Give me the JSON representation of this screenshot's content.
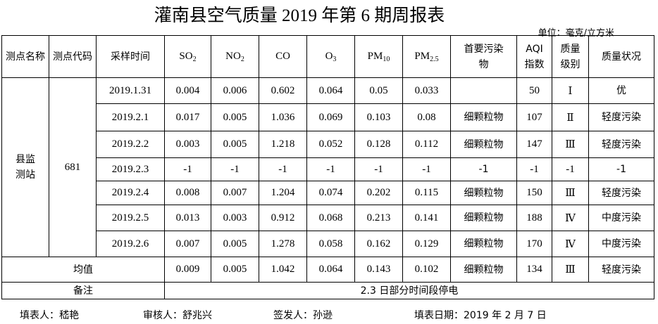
{
  "title": "灌南县空气质量 2019 年第 6 期周报表",
  "unit": "单位：毫克/立方米",
  "headers": {
    "station_name": "测点名称",
    "station_code": "测点代码",
    "time": "采样时间",
    "so2": "SO",
    "so2_sub": "2",
    "no2": "NO",
    "no2_sub": "2",
    "co": "CO",
    "o3": "O",
    "o3_sub": "3",
    "pm10": "PM",
    "pm10_sub": "10",
    "pm25": "PM",
    "pm25_sub": "2.5",
    "primary": "首要污染物",
    "aqi": "AQI指数",
    "level": "质量级别",
    "status": "质量状况"
  },
  "station": {
    "name": "县监测站",
    "code": "681"
  },
  "rows": [
    {
      "time": "2019.1.31",
      "so2": "0.004",
      "no2": "0.006",
      "co": "0.602",
      "o3": "0.064",
      "pm10": "0.05",
      "pm25": "0.033",
      "primary": "",
      "aqi": "50",
      "level": "Ⅰ",
      "status": "优"
    },
    {
      "time": "2019.2.1",
      "so2": "0.017",
      "no2": "0.005",
      "co": "1.036",
      "o3": "0.069",
      "pm10": "0.103",
      "pm25": "0.08",
      "primary": "细颗粒物",
      "aqi": "107",
      "level": "Ⅱ",
      "status": "轻度污染"
    },
    {
      "time": "2019.2.2",
      "so2": "0.003",
      "no2": "0.005",
      "co": "1.218",
      "o3": "0.052",
      "pm10": "0.128",
      "pm25": "0.112",
      "primary": "细颗粒物",
      "aqi": "147",
      "level": "Ⅲ",
      "status": "轻度污染"
    },
    {
      "time": "2019.2.3",
      "so2": "-1",
      "no2": "-1",
      "co": "-1",
      "o3": "-1",
      "pm10": "-1",
      "pm25": "-1",
      "primary": "-1",
      "aqi": "-1",
      "level": "-1",
      "status": "-1"
    },
    {
      "time": "2019.2.4",
      "so2": "0.008",
      "no2": "0.007",
      "co": "1.204",
      "o3": "0.074",
      "pm10": "0.202",
      "pm25": "0.115",
      "primary": "细颗粒物",
      "aqi": "150",
      "level": "Ⅲ",
      "status": "轻度污染"
    },
    {
      "time": "2019.2.5",
      "so2": "0.013",
      "no2": "0.003",
      "co": "0.912",
      "o3": "0.068",
      "pm10": "0.213",
      "pm25": "0.141",
      "primary": "细颗粒物",
      "aqi": "188",
      "level": "Ⅳ",
      "status": "中度污染"
    },
    {
      "time": "2019.2.6",
      "so2": "0.007",
      "no2": "0.005",
      "co": "1.278",
      "o3": "0.058",
      "pm10": "0.162",
      "pm25": "0.129",
      "primary": "细颗粒物",
      "aqi": "170",
      "level": "Ⅳ",
      "status": "中度污染"
    }
  ],
  "average": {
    "label": "均值",
    "so2": "0.009",
    "no2": "0.005",
    "co": "1.042",
    "o3": "0.064",
    "pm10": "0.143",
    "pm25": "0.102",
    "primary": "细颗粒物",
    "aqi": "134",
    "level": "Ⅲ",
    "status": "轻度污染"
  },
  "remark": {
    "label": "备注",
    "text": "2.3 日部分时间段停电"
  },
  "footer": {
    "filler": "填表人：嵇艳",
    "reviewer": "审核人：舒兆兴",
    "issuer": "签发人：孙逊",
    "date": "填表日期：2019 年 2 月 7 日"
  }
}
